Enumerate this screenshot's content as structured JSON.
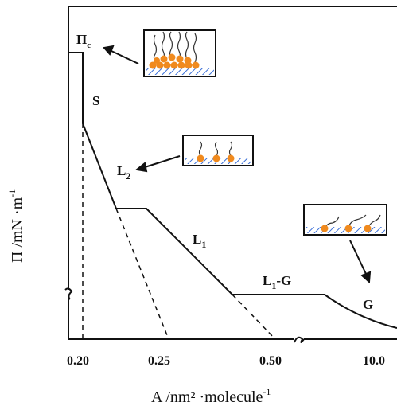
{
  "figure": {
    "y_axis_label": "Π /mN ·m",
    "y_axis_label_sup": "-1",
    "x_axis_label": "A /nm² ·molecule",
    "x_axis_label_sup": "-1",
    "x_tick_labels": [
      "0.20",
      "0.25",
      "0.50",
      "10.0"
    ],
    "phase_labels": {
      "collapse": "Π",
      "collapse_sub": "c",
      "solid": "S",
      "liquid_condensed": "L",
      "liquid_condensed_sub": "2",
      "liquid_expanded": "L",
      "liquid_expanded_sub": "1",
      "coexistence": "L",
      "coexistence_sub": "1",
      "coexistence_suffix": "-G",
      "gas": "G"
    },
    "colors": {
      "line": "#111111",
      "headgroup": "#f08a1e",
      "subphase_hatch": "#3a6fd8"
    }
  }
}
